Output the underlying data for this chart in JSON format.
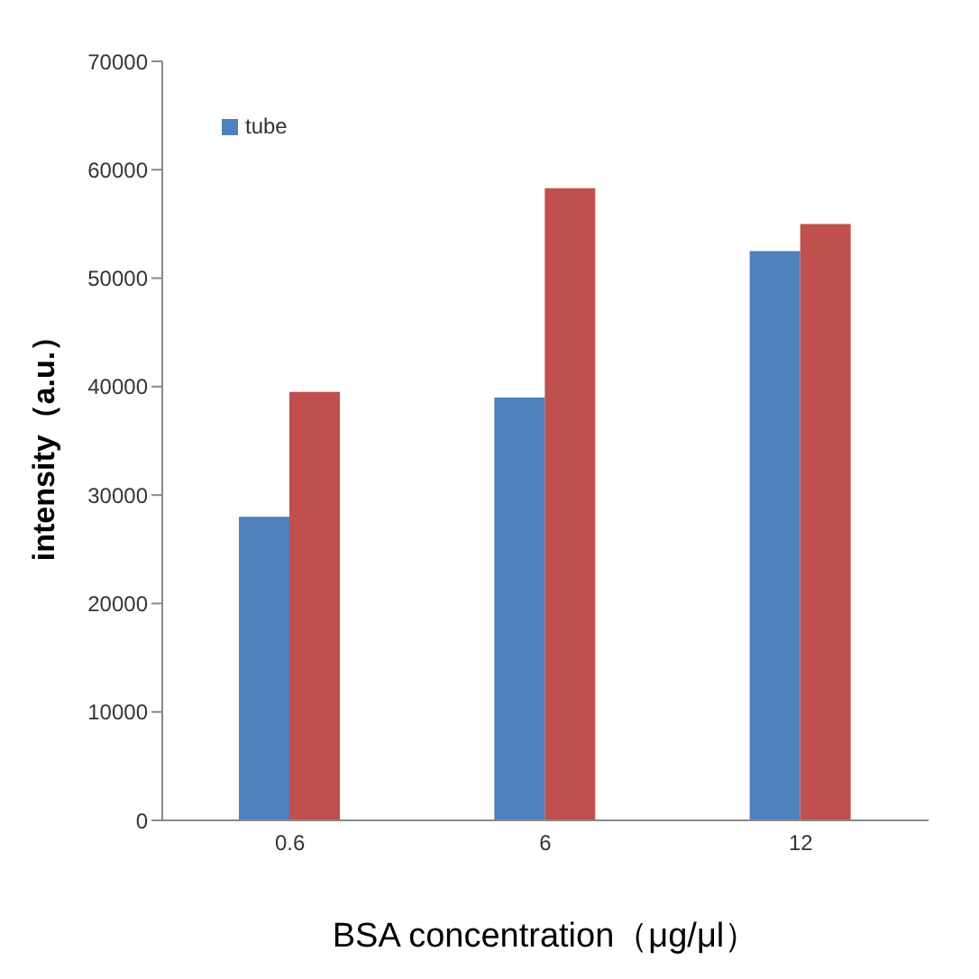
{
  "chart_data": {
    "type": "bar",
    "xlabel": "BSA concentration（μg/μl）",
    "ylabel": "intensity（a.u.）",
    "categories": [
      "0.6",
      "6",
      "12"
    ],
    "series": [
      {
        "name": "tube",
        "color": "#4f81bd",
        "values": [
          28000,
          39000,
          52500
        ]
      },
      {
        "color": "#c0504d",
        "values": [
          39500,
          58300,
          55000
        ]
      }
    ],
    "ylim": [
      0,
      70000
    ],
    "yticks": [
      0,
      10000,
      20000,
      30000,
      40000,
      50000,
      60000,
      70000
    ],
    "grid": false,
    "legend": "top left"
  }
}
